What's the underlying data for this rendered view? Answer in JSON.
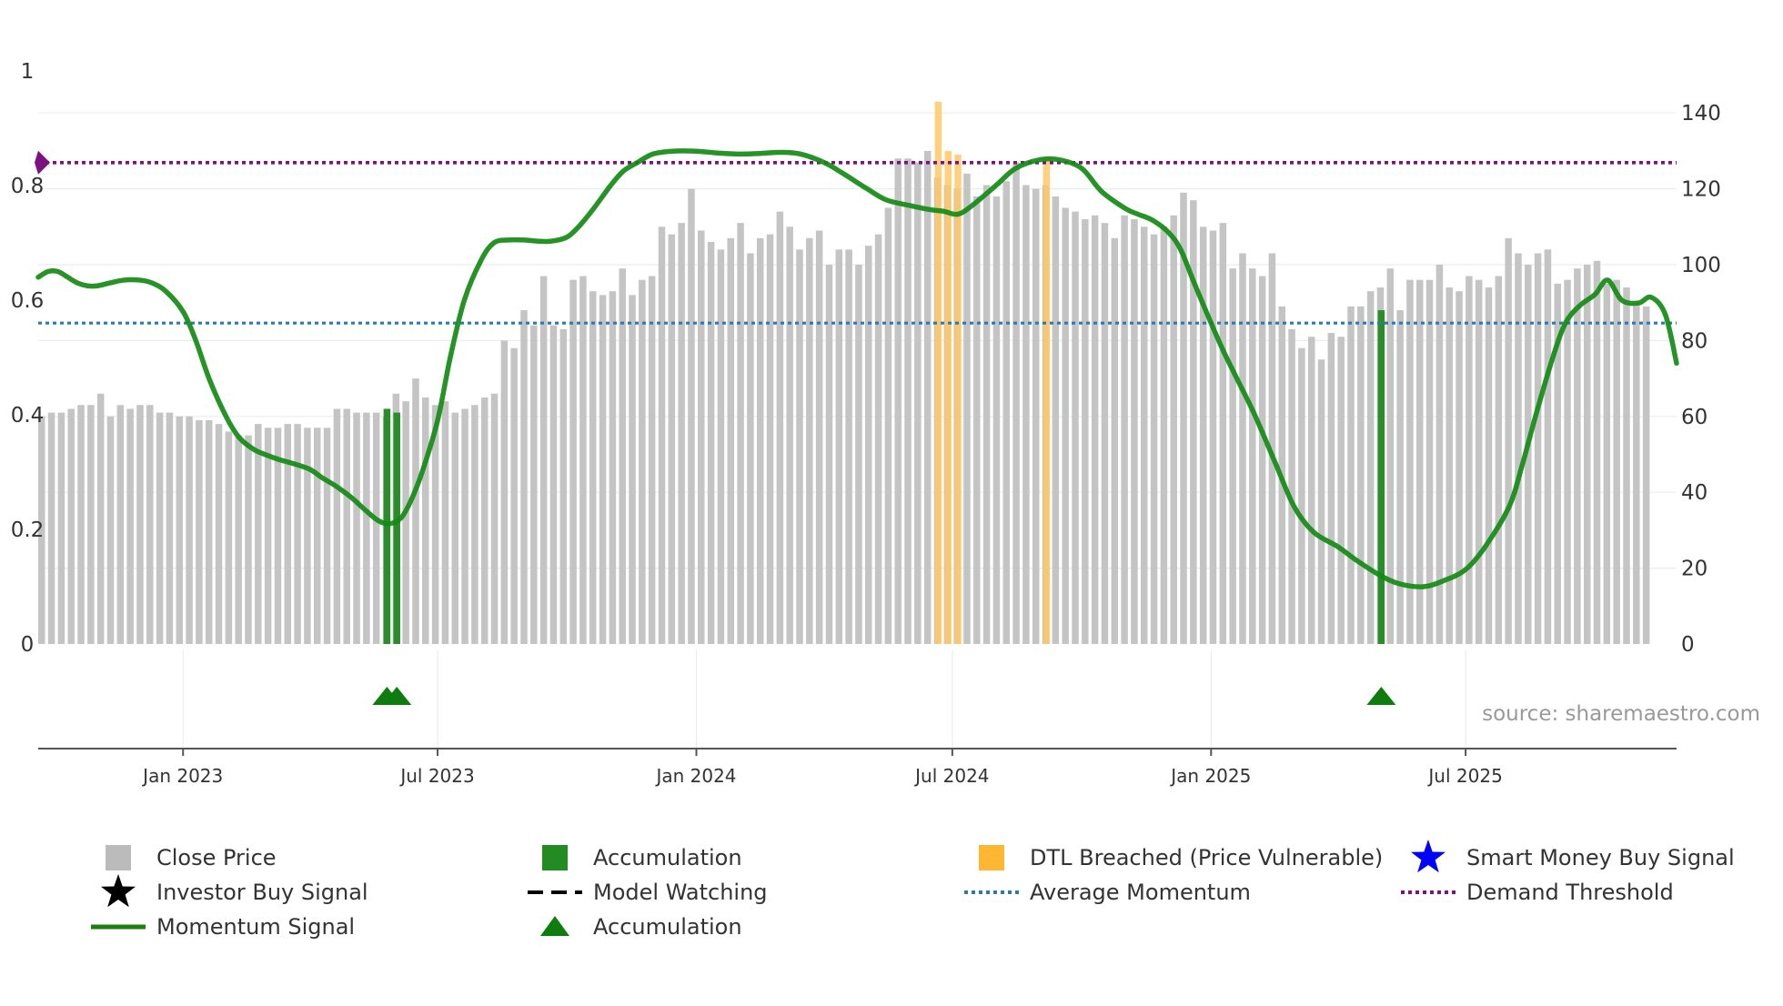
{
  "chart_data": {
    "type": "bar",
    "title": "",
    "source": "source: sharemaestro.com",
    "y_left": {
      "ticks": [
        0,
        0.2,
        0.4,
        0.6,
        0.8,
        1
      ],
      "tick_labels": [
        "0",
        "0.2",
        "0.4",
        "0.6",
        "0.8",
        "1"
      ],
      "range": [
        0,
        1
      ]
    },
    "y_right": {
      "ticks": [
        0,
        20,
        40,
        60,
        80,
        100,
        120,
        140
      ],
      "tick_labels": [
        "0",
        "20",
        "40",
        "60",
        "80",
        "100",
        "120",
        "140"
      ],
      "range": [
        0,
        151
      ]
    },
    "x_axis": {
      "range": [
        "2022-09-20",
        "2025-11-28"
      ],
      "ticks": [
        "2023-01-01",
        "2023-07-01",
        "2024-01-01",
        "2024-07-01",
        "2025-01-01",
        "2025-07-01"
      ],
      "tick_labels": [
        "Jan 2023",
        "Jul 2023",
        "Jan 2024",
        "Jul 2024",
        "Jan 2025",
        "Jul 2025"
      ]
    },
    "close_price": {
      "start": "2022-09-20",
      "interval_days": 7,
      "values": [
        60,
        61,
        61,
        62,
        63,
        63,
        66,
        60,
        63,
        62,
        63,
        63,
        61,
        61,
        60,
        60,
        59,
        59,
        58,
        56,
        55,
        55,
        58,
        57,
        57,
        58,
        58,
        57,
        57,
        57,
        62,
        62,
        61,
        61,
        61,
        60,
        66,
        64,
        70,
        65,
        63,
        64,
        61,
        62,
        63,
        65,
        66,
        80,
        78,
        88,
        84,
        97,
        84,
        83,
        96,
        97,
        93,
        92,
        93,
        99,
        92,
        96,
        97,
        110,
        108,
        111,
        120,
        109,
        106,
        104,
        107,
        111,
        103,
        107,
        108,
        114,
        110,
        104,
        107,
        109,
        100,
        104,
        104,
        100,
        105,
        108,
        115,
        128,
        128,
        127,
        130,
        123,
        121,
        120,
        124,
        118,
        121,
        118,
        122,
        127,
        121,
        120,
        121,
        118,
        115,
        114,
        112,
        113,
        111,
        107,
        113,
        112,
        110,
        108,
        110,
        113,
        119,
        117,
        110,
        109,
        111,
        99,
        103,
        99,
        97,
        103,
        89,
        83,
        78,
        81,
        75,
        82,
        81,
        89,
        89,
        93,
        94,
        99,
        88,
        96,
        96,
        96,
        100,
        94,
        93,
        97,
        96,
        94,
        97,
        107,
        103,
        100,
        103,
        104,
        95,
        96,
        99,
        100,
        101,
        95,
        96,
        94,
        90,
        89
      ]
    },
    "accumulation_bars": [
      {
        "date": "2023-05-26",
        "value": 62
      },
      {
        "date": "2023-06-02",
        "value": 61
      },
      {
        "date": "2025-05-02",
        "value": 88
      }
    ],
    "dtl_breached_bars": [
      {
        "date": "2024-06-21",
        "value": 143
      },
      {
        "date": "2024-06-28",
        "value": 130
      },
      {
        "date": "2024-07-05",
        "value": 129
      },
      {
        "date": "2024-09-06",
        "value": 128
      }
    ],
    "momentum_signal": {
      "dates": [
        "2022-09-20",
        "2022-09-27",
        "2022-10-04",
        "2022-10-11",
        "2022-10-18",
        "2022-10-25",
        "2022-11-01",
        "2022-11-10",
        "2022-11-20",
        "2022-12-01",
        "2022-12-10",
        "2022-12-20",
        "2023-01-01",
        "2023-01-10",
        "2023-01-20",
        "2023-02-01",
        "2023-02-10",
        "2023-02-20",
        "2023-03-01",
        "2023-03-10",
        "2023-03-20",
        "2023-04-01",
        "2023-04-10",
        "2023-04-20",
        "2023-05-01",
        "2023-05-10",
        "2023-05-20",
        "2023-05-28",
        "2023-06-05",
        "2023-06-12",
        "2023-06-20",
        "2023-07-01",
        "2023-07-10",
        "2023-07-20",
        "2023-08-01",
        "2023-08-10",
        "2023-08-20",
        "2023-09-01",
        "2023-09-10",
        "2023-09-20",
        "2023-10-01",
        "2023-10-10",
        "2023-10-20",
        "2023-11-01",
        "2023-11-10",
        "2023-11-20",
        "2023-12-01",
        "2023-12-15",
        "2024-01-01",
        "2024-01-15",
        "2024-02-01",
        "2024-02-15",
        "2024-03-01",
        "2024-03-15",
        "2024-04-01",
        "2024-04-15",
        "2024-05-01",
        "2024-05-15",
        "2024-06-01",
        "2024-06-15",
        "2024-06-25",
        "2024-07-05",
        "2024-07-15",
        "2024-08-01",
        "2024-08-15",
        "2024-09-01",
        "2024-09-15",
        "2024-10-01",
        "2024-10-15",
        "2024-11-01",
        "2024-11-10",
        "2024-11-20",
        "2024-12-01",
        "2024-12-10",
        "2024-12-20",
        "2025-01-01",
        "2025-01-10",
        "2025-01-20",
        "2025-02-01",
        "2025-02-15",
        "2025-03-01",
        "2025-03-15",
        "2025-04-01",
        "2025-04-15",
        "2025-05-01",
        "2025-05-15",
        "2025-06-01",
        "2025-06-15",
        "2025-07-01",
        "2025-07-15",
        "2025-08-01",
        "2025-08-10",
        "2025-08-20",
        "2025-09-01",
        "2025-09-10",
        "2025-09-20",
        "2025-10-01",
        "2025-10-10",
        "2025-10-20",
        "2025-11-01",
        "2025-11-10",
        "2025-11-20",
        "2025-11-28"
      ],
      "values": [
        0.64,
        0.65,
        0.65,
        0.64,
        0.63,
        0.625,
        0.625,
        0.63,
        0.635,
        0.635,
        0.63,
        0.615,
        0.58,
        0.53,
        0.46,
        0.395,
        0.36,
        0.34,
        0.33,
        0.322,
        0.315,
        0.305,
        0.29,
        0.275,
        0.255,
        0.235,
        0.215,
        0.21,
        0.22,
        0.25,
        0.3,
        0.39,
        0.5,
        0.6,
        0.67,
        0.7,
        0.705,
        0.705,
        0.703,
        0.703,
        0.71,
        0.73,
        0.76,
        0.8,
        0.825,
        0.84,
        0.855,
        0.86,
        0.86,
        0.857,
        0.855,
        0.856,
        0.858,
        0.855,
        0.84,
        0.82,
        0.795,
        0.775,
        0.765,
        0.758,
        0.755,
        0.75,
        0.765,
        0.8,
        0.83,
        0.845,
        0.845,
        0.83,
        0.79,
        0.76,
        0.75,
        0.74,
        0.72,
        0.69,
        0.63,
        0.56,
        0.51,
        0.46,
        0.4,
        0.32,
        0.24,
        0.195,
        0.17,
        0.145,
        0.12,
        0.105,
        0.1,
        0.11,
        0.13,
        0.17,
        0.24,
        0.31,
        0.4,
        0.5,
        0.56,
        0.59,
        0.61,
        0.635,
        0.6,
        0.595,
        0.605,
        0.575,
        0.49
      ]
    },
    "average_momentum": 0.56,
    "demand_threshold": 0.84,
    "accumulation_markers": [
      "2023-05-26",
      "2023-06-02",
      "2025-05-02"
    ],
    "legend": [
      {
        "label": "Close Price",
        "symbol": "square",
        "color": "#bbbbbb"
      },
      {
        "label": "Accumulation",
        "symbol": "square",
        "color": "#228b22"
      },
      {
        "label": "DTL Breached (Price Vulnerable)",
        "symbol": "square",
        "color": "#ffb733"
      },
      {
        "label": "Smart Money Buy Signal",
        "symbol": "star",
        "color": "#0000ff"
      },
      {
        "label": "Investor Buy Signal",
        "symbol": "star",
        "color": "#000000"
      },
      {
        "label": "Model Watching",
        "symbol": "dash",
        "color": "#000000"
      },
      {
        "label": "Average Momentum",
        "symbol": "dot",
        "color": "#2e7bab"
      },
      {
        "label": "Demand Threshold",
        "symbol": "dot",
        "color": "#7b1280"
      },
      {
        "label": "Momentum Signal",
        "symbol": "line",
        "color": "#1b7d12"
      },
      {
        "label": "Accumulation",
        "symbol": "triangle",
        "color": "#0e7d0e"
      }
    ],
    "colors": {
      "close": "#c4c4c4",
      "accumulation": "#2b8c2b",
      "dtl": "#ffc866",
      "momentum": "#138a13",
      "average": "#2e7bab",
      "threshold": "#7b1280",
      "marker": "#0e7d0e"
    }
  }
}
